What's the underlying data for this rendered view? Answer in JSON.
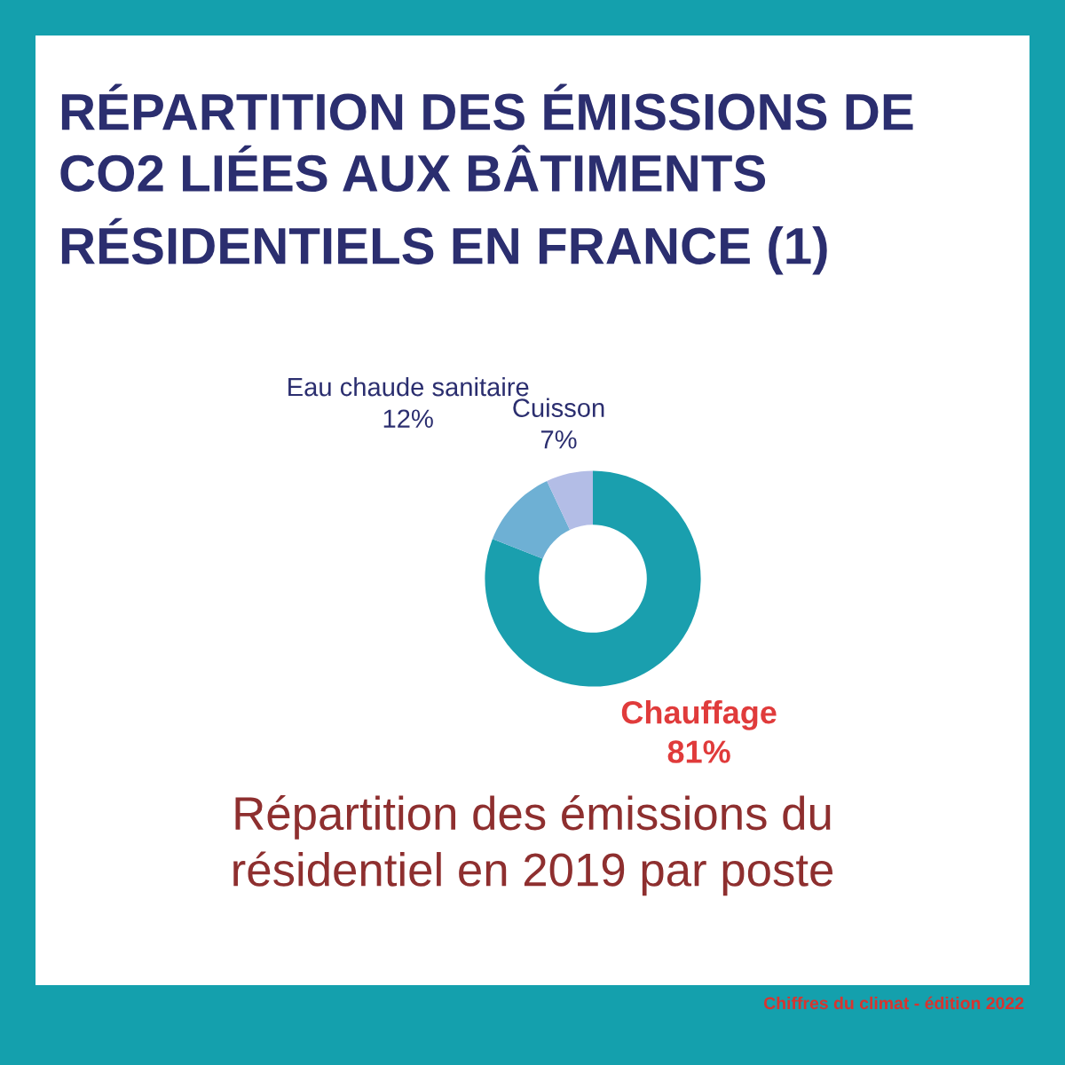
{
  "chart_data": {
    "type": "donut",
    "title": "RÉPARTITION DES ÉMISSIONS DE\nCO2 LIÉES AUX BÂTIMENTS\nRÉSIDENTIELS EN FRANCE (1)",
    "subtitle": "Répartition des émissions du\nrésidentiel en 2019 par poste",
    "categories": [
      "Chauffage",
      "Eau chaude sanitaire",
      "Cuisson"
    ],
    "values": [
      81,
      12,
      7
    ],
    "colors": [
      "#1a9fae",
      "#6eb0d4",
      "#b3bde6"
    ],
    "value_labels": [
      "81%",
      "12%",
      "7%"
    ],
    "annotations": [
      "Chiffres du climat - édition 2022"
    ]
  }
}
